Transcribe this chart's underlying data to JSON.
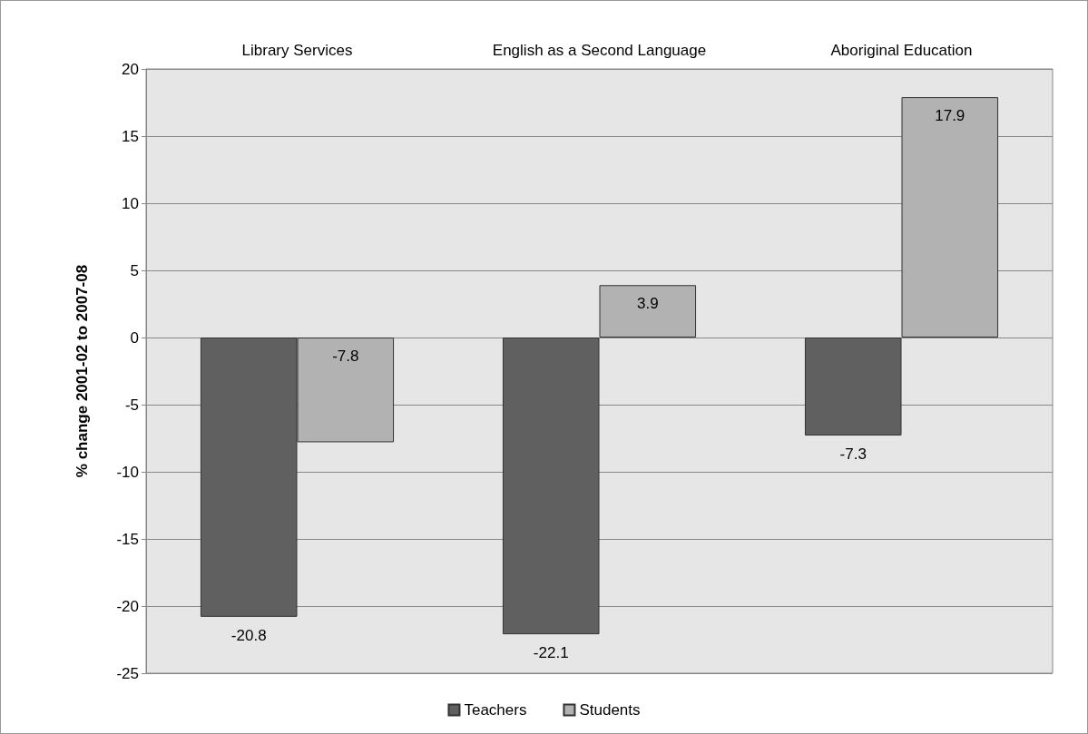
{
  "chart_data": {
    "type": "bar",
    "ylabel": "% change 2001-02 to 2007-08",
    "categories": [
      "Library Services",
      "English as a Second Language",
      "Aboriginal Education"
    ],
    "series": [
      {
        "name": "Teachers",
        "color": "#606060",
        "values": [
          -20.8,
          -22.1,
          -7.3
        ]
      },
      {
        "name": "Students",
        "color": "#b2b2b2",
        "values": [
          -7.8,
          3.9,
          17.9
        ]
      }
    ],
    "ylim": [
      -25,
      20
    ],
    "yticks": [
      -25,
      -20,
      -15,
      -10,
      -5,
      0,
      5,
      10,
      15,
      20
    ],
    "grid": "y",
    "legend": "bottom",
    "data_labels": true
  }
}
